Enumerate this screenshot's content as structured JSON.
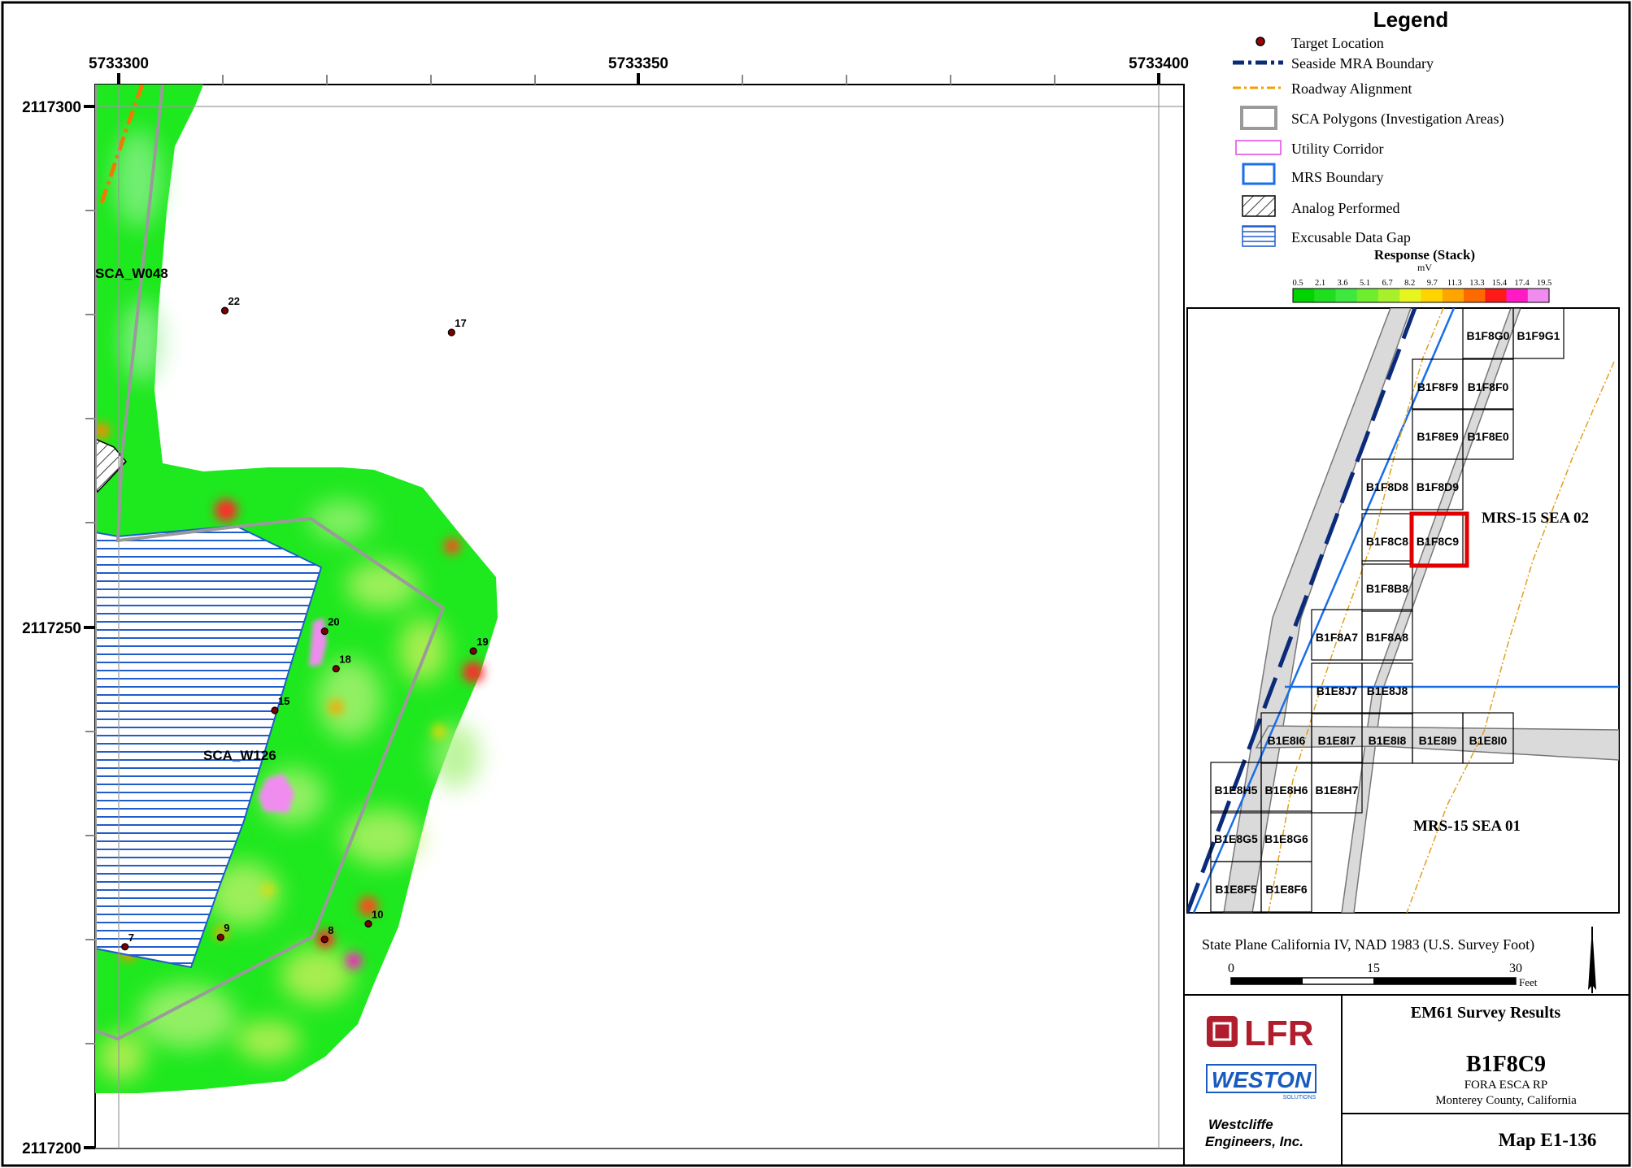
{
  "map": {
    "x_ticks": [
      "5733300",
      "5733350",
      "5733400"
    ],
    "y_ticks": [
      "2117300",
      "2117250",
      "2117200"
    ],
    "area_labels": {
      "sca_w048": "SCA_W048",
      "sca_w126": "SCA_W126"
    },
    "targets": [
      {
        "label": "22",
        "x": 5733310.2,
        "y": 2117280.4
      },
      {
        "label": "17",
        "x": 5733332.0,
        "y": 2117278.3
      },
      {
        "label": "20",
        "x": 5733319.8,
        "y": 2117249.6
      },
      {
        "label": "19",
        "x": 5733334.1,
        "y": 2117247.7
      },
      {
        "label": "18",
        "x": 5733320.9,
        "y": 2117246.0
      },
      {
        "label": "15",
        "x": 5733315.0,
        "y": 2117242.0
      },
      {
        "label": "10",
        "x": 5733324.0,
        "y": 2117221.5
      },
      {
        "label": "9",
        "x": 5733309.8,
        "y": 2117220.2
      },
      {
        "label": "8",
        "x": 5733319.8,
        "y": 2117220.0
      },
      {
        "label": "7",
        "x": 5733300.6,
        "y": 2117219.3
      }
    ]
  },
  "legend": {
    "title": "Legend",
    "items": [
      "Target Location",
      "Seaside MRA Boundary",
      "Roadway Alignment",
      "SCA Polygons (Investigation Areas)",
      "Utility Corridor",
      "MRS Boundary",
      "Analog Performed",
      "Excusable Data Gap"
    ],
    "response_title": "Response (Stack)",
    "response_unit": "mV",
    "scale_values": [
      "0.5",
      "2.1",
      "3.6",
      "5.1",
      "6.7",
      "8.2",
      "9.7",
      "11.3",
      "13.3",
      "15.4",
      "17.4",
      "19.5"
    ],
    "scale_colors": [
      "#00d400",
      "#1fde1f",
      "#3ee83e",
      "#6eee2e",
      "#a7f02a",
      "#e6f51e",
      "#ffd400",
      "#ffa500",
      "#ff6a00",
      "#ff1a1a",
      "#ff1ac6",
      "#f08cf0"
    ]
  },
  "index_map": {
    "cells": [
      "B1F8G0",
      "B1F9G1",
      "B1F8F9",
      "B1F8F0",
      "B1F8E9",
      "B1F8E0",
      "B1F8D8",
      "B1F8D9",
      "B1F8C8",
      "B1F8C9",
      "B1F8B8",
      "B1F8A7",
      "B1F8A8",
      "B1E8J7",
      "B1E8J8",
      "B1E8I6",
      "B1E8I7",
      "B1E8I8",
      "B1E8I9",
      "B1E8I0",
      "B1E8H5",
      "B1E8H6",
      "B1E8H7",
      "B1E8G5",
      "B1E8G6",
      "B1E8F5",
      "B1E8F6"
    ],
    "sea02": "MRS-15 SEA 02",
    "sea01": "MRS-15 SEA 01"
  },
  "projection": "State Plane California IV, NAD 1983 (U.S. Survey Foot)",
  "scalebar": {
    "v0": "0",
    "v1": "15",
    "v2": "30",
    "unit": "Feet"
  },
  "title_block": {
    "logo1": "LFR",
    "logo2": "WESTON",
    "logo2_sub": "SOLUTIONS",
    "logo3_line1": "Westcliffe",
    "logo3_line2": "Engineers, Inc.",
    "survey": "EM61 Survey Results",
    "grid_id": "B1F8C9",
    "project": "FORA ESCA RP",
    "county": "Monterey County, California",
    "map_no": "Map E1-136"
  }
}
